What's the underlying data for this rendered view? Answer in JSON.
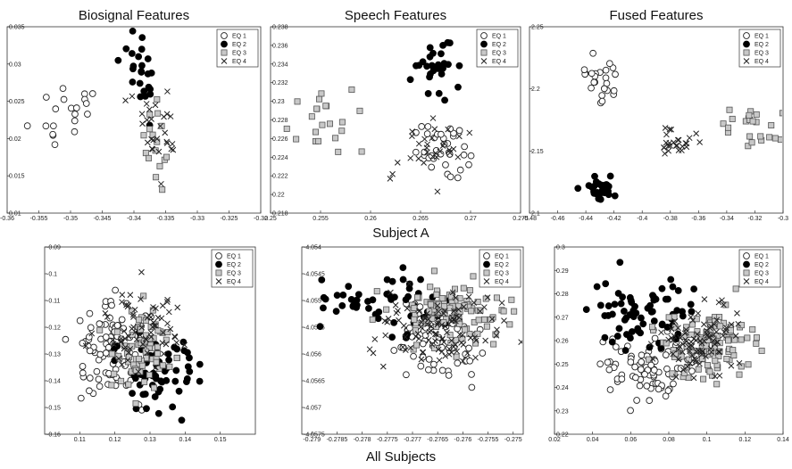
{
  "captions": {
    "top_row": "Subject A",
    "bottom_row": "All Subjects"
  },
  "legend": [
    "EQ 1",
    "EQ 2",
    "EQ 3",
    "EQ 4"
  ],
  "chart_data": [
    {
      "type": "scatter",
      "title": "Biosignal Features",
      "xlim": [
        -0.36,
        -0.32
      ],
      "ylim": [
        0.01,
        0.035
      ],
      "xticks": [
        "-0.36",
        "-0.355",
        "-0.35",
        "-0.345",
        "-0.34",
        "-0.335",
        "-0.33",
        "-0.325",
        "-0.32"
      ],
      "yticks": [
        "0.01",
        "0.015",
        "0.02",
        "0.025",
        "0.03",
        "0.035"
      ],
      "series": [
        {
          "name": "EQ 1",
          "cx": -0.3505,
          "cy": 0.0235,
          "sx": 0.0025,
          "sy": 0.0025,
          "n": 20,
          "seed": 11
        },
        {
          "name": "EQ 2",
          "cx": -0.3385,
          "cy": 0.0295,
          "sx": 0.0015,
          "sy": 0.0025,
          "n": 24,
          "seed": 12
        },
        {
          "name": "EQ 3",
          "cx": -0.3365,
          "cy": 0.019,
          "sx": 0.0012,
          "sy": 0.003,
          "n": 16,
          "seed": 13
        },
        {
          "name": "EQ 4",
          "cx": -0.3355,
          "cy": 0.022,
          "sx": 0.002,
          "sy": 0.0025,
          "n": 28,
          "seed": 14
        }
      ]
    },
    {
      "type": "scatter",
      "title": "Speech Features",
      "xlim": [
        0.25,
        0.275
      ],
      "ylim": [
        0.218,
        0.238
      ],
      "xticks": [
        "0.25",
        "0.255",
        "0.26",
        "0.265",
        "0.27",
        "0.275"
      ],
      "yticks": [
        "0.218",
        "0.22",
        "0.222",
        "0.224",
        "0.226",
        "0.228",
        "0.23",
        "0.232",
        "0.234",
        "0.236",
        "0.238"
      ],
      "series": [
        {
          "name": "EQ 1",
          "cx": 0.2675,
          "cy": 0.2245,
          "sx": 0.0018,
          "sy": 0.0016,
          "n": 34,
          "seed": 21
        },
        {
          "name": "EQ 2",
          "cx": 0.2662,
          "cy": 0.2335,
          "sx": 0.0012,
          "sy": 0.0018,
          "n": 28,
          "seed": 22
        },
        {
          "name": "EQ 3",
          "cx": 0.2565,
          "cy": 0.2275,
          "sx": 0.0018,
          "sy": 0.0017,
          "n": 22,
          "seed": 23
        },
        {
          "name": "EQ 4",
          "cx": 0.2655,
          "cy": 0.2245,
          "sx": 0.0022,
          "sy": 0.0018,
          "n": 30,
          "seed": 24
        }
      ]
    },
    {
      "type": "scatter",
      "title": "Fused Features",
      "xlim": [
        -0.48,
        -0.3
      ],
      "ylim": [
        2.1,
        2.25
      ],
      "xticks": [
        "-0.48",
        "-0.46",
        "-0.44",
        "-0.42",
        "-0.4",
        "-0.38",
        "-0.36",
        "-0.34",
        "-0.32",
        "-0.3"
      ],
      "yticks": [
        "2.1",
        "2.15",
        "2.2",
        "2.25"
      ],
      "series": [
        {
          "name": "EQ 1",
          "cx": -0.432,
          "cy": 2.207,
          "sx": 0.008,
          "sy": 0.01,
          "n": 24,
          "seed": 31
        },
        {
          "name": "EQ 2",
          "cx": -0.429,
          "cy": 2.12,
          "sx": 0.006,
          "sy": 0.005,
          "n": 28,
          "seed": 32
        },
        {
          "name": "EQ 3",
          "cx": -0.322,
          "cy": 2.168,
          "sx": 0.011,
          "sy": 0.008,
          "n": 24,
          "seed": 33
        },
        {
          "name": "EQ 4",
          "cx": -0.376,
          "cy": 2.157,
          "sx": 0.007,
          "sy": 0.006,
          "n": 26,
          "seed": 34
        }
      ]
    },
    {
      "type": "scatter",
      "title": "",
      "xlim": [
        0.1,
        0.16
      ],
      "ylim": [
        -0.16,
        -0.09
      ],
      "xticks": [
        "0.11",
        "0.12",
        "0.13",
        "0.14",
        "0.15"
      ],
      "yticks": [
        "-0.16",
        "-0.15",
        "-0.14",
        "-0.13",
        "-0.12",
        "-0.11",
        "-0.1",
        "-0.09"
      ],
      "series": [
        {
          "name": "EQ 1",
          "cx": 0.12,
          "cy": -0.128,
          "sx": 0.006,
          "sy": 0.009,
          "n": 90,
          "seed": 41
        },
        {
          "name": "EQ 2",
          "cx": 0.131,
          "cy": -0.136,
          "sx": 0.007,
          "sy": 0.007,
          "n": 60,
          "seed": 42
        },
        {
          "name": "EQ 3",
          "cx": 0.127,
          "cy": -0.127,
          "sx": 0.005,
          "sy": 0.008,
          "n": 70,
          "seed": 43
        },
        {
          "name": "EQ 4",
          "cx": 0.127,
          "cy": -0.121,
          "sx": 0.006,
          "sy": 0.009,
          "n": 70,
          "seed": 44
        }
      ]
    },
    {
      "type": "scatter",
      "title": "",
      "xlim": [
        -0.2792,
        -0.2748
      ],
      "ylim": [
        -4.0575,
        -4.054
      ],
      "xticks": [
        "-0.279",
        "-0.2785",
        "-0.278",
        "-0.2775",
        "-0.277",
        "-0.2765",
        "-0.276",
        "-0.2755",
        "-0.275"
      ],
      "yticks": [
        "-4.0575",
        "-4.057",
        "-4.0565",
        "-4.056",
        "-4.0555",
        "-4.055",
        "-4.0545",
        "-4.054"
      ],
      "series": [
        {
          "name": "EQ 1",
          "cx": -0.2766,
          "cy": -4.0558,
          "sx": 0.0005,
          "sy": 0.0004,
          "n": 60,
          "seed": 51
        },
        {
          "name": "EQ 2",
          "cx": -0.2775,
          "cy": -4.0551,
          "sx": 0.0007,
          "sy": 0.0003,
          "n": 55,
          "seed": 52
        },
        {
          "name": "EQ 3",
          "cx": -0.2762,
          "cy": -4.0552,
          "sx": 0.0006,
          "sy": 0.0003,
          "n": 110,
          "seed": 53
        },
        {
          "name": "EQ 4",
          "cx": -0.2765,
          "cy": -4.0555,
          "sx": 0.0006,
          "sy": 0.0004,
          "n": 100,
          "seed": 54
        }
      ]
    },
    {
      "type": "scatter",
      "title": "",
      "xlim": [
        0.02,
        0.14
      ],
      "ylim": [
        0.22,
        0.3
      ],
      "xticks": [
        "0.02",
        "0.04",
        "0.06",
        "0.08",
        "0.1",
        "0.12",
        "0.14"
      ],
      "yticks": [
        "0.22",
        "0.23",
        "0.24",
        "0.25",
        "0.26",
        "0.27",
        "0.28",
        "0.29",
        "0.3"
      ],
      "series": [
        {
          "name": "EQ 1",
          "cx": 0.068,
          "cy": 0.249,
          "sx": 0.013,
          "sy": 0.008,
          "n": 80,
          "seed": 61
        },
        {
          "name": "EQ 2",
          "cx": 0.066,
          "cy": 0.272,
          "sx": 0.012,
          "sy": 0.007,
          "n": 70,
          "seed": 62
        },
        {
          "name": "EQ 3",
          "cx": 0.1,
          "cy": 0.258,
          "sx": 0.011,
          "sy": 0.008,
          "n": 110,
          "seed": 63
        },
        {
          "name": "EQ 4",
          "cx": 0.096,
          "cy": 0.259,
          "sx": 0.01,
          "sy": 0.007,
          "n": 90,
          "seed": 64
        }
      ]
    }
  ]
}
